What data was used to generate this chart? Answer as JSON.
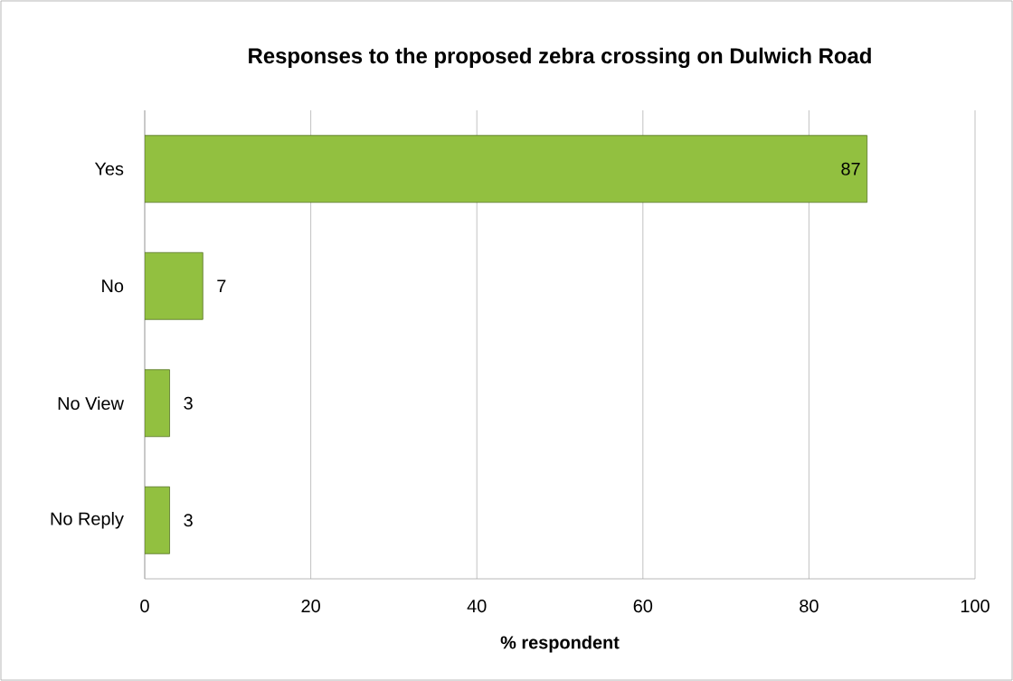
{
  "chart_data": {
    "type": "bar",
    "orientation": "horizontal",
    "title": "Responses to the proposed zebra crossing on Dulwich Road",
    "xlabel": "% respondent",
    "categories": [
      "Yes",
      "No",
      "No View",
      "No Reply"
    ],
    "values": [
      87,
      7,
      3,
      3
    ],
    "color": "#92c040",
    "xlim": [
      0,
      100
    ],
    "xticks": [
      0,
      20,
      40,
      60,
      80,
      100
    ],
    "grid": "x",
    "data_labels": true
  }
}
